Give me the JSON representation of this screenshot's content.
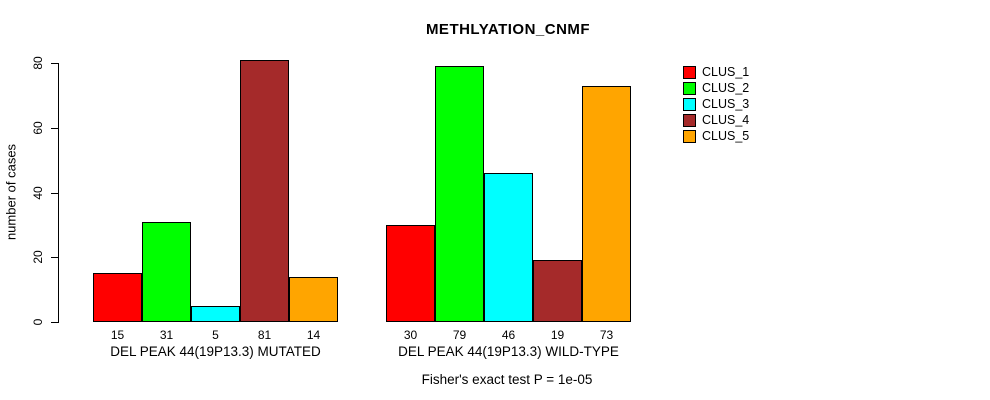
{
  "title": "METHLYATION_CNMF",
  "chart_data": {
    "type": "bar",
    "title": "METHLYATION_CNMF",
    "xlabel": "",
    "ylabel": "number of cases",
    "ylim": [
      0,
      80
    ],
    "yticks": [
      0,
      20,
      40,
      60,
      80
    ],
    "grid": false,
    "legend_position": "right",
    "bar_value_labels_shown": true,
    "series_colors": [
      "#ff0000",
      "#00ff00",
      "#00ffff",
      "#a52a2a",
      "#ffa500"
    ],
    "legend": [
      {
        "label": "CLUS_1",
        "color": "#ff0000"
      },
      {
        "label": "CLUS_2",
        "color": "#00ff00"
      },
      {
        "label": "CLUS_3",
        "color": "#00ffff"
      },
      {
        "label": "CLUS_4",
        "color": "#a52a2a"
      },
      {
        "label": "CLUS_5",
        "color": "#ffa500"
      }
    ],
    "groups": [
      {
        "label": "DEL PEAK 44(19P13.3) MUTATED",
        "values": [
          15,
          31,
          5,
          81,
          14
        ]
      },
      {
        "label": "DEL PEAK 44(19P13.3) WILD-TYPE",
        "values": [
          30,
          79,
          46,
          19,
          73
        ]
      }
    ],
    "annotation": "Fisher's exact test P = 1e-05"
  }
}
